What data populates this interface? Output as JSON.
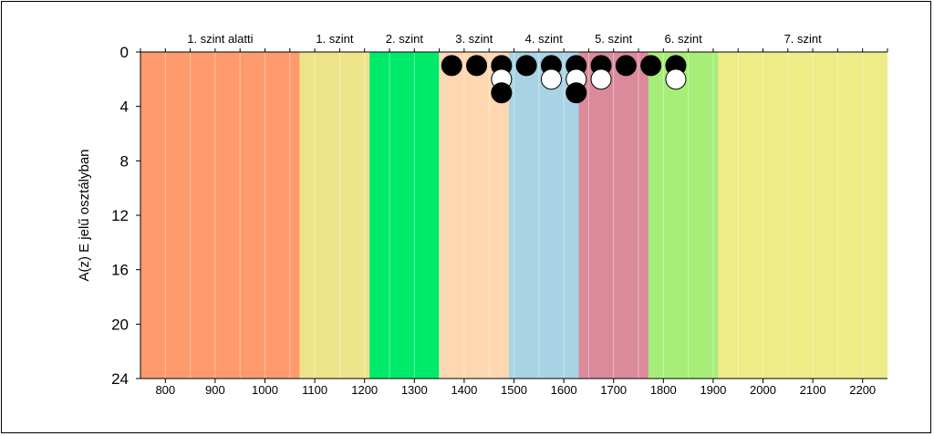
{
  "chart_data": {
    "type": "scatter",
    "title": "",
    "xlabel": "",
    "ylabel": "A(z) E jelű osztályban",
    "xlim": [
      750,
      2250
    ],
    "ylim": [
      0,
      24
    ],
    "y_inverted": true,
    "xticks": [
      800,
      900,
      1000,
      1100,
      1200,
      1300,
      1400,
      1500,
      1600,
      1700,
      1800,
      1900,
      2000,
      2100,
      2200
    ],
    "yticks": [
      0,
      4,
      8,
      12,
      16,
      20,
      24
    ],
    "minor_x_step": 50,
    "levels": [
      {
        "label": "1. szint alatti",
        "from": 750,
        "to": 1070,
        "color": "#FF9A6C"
      },
      {
        "label": "1. szint",
        "from": 1070,
        "to": 1210,
        "color": "#EDE48A"
      },
      {
        "label": "2. szint",
        "from": 1210,
        "to": 1350,
        "color": "#00EA6A"
      },
      {
        "label": "3. szint",
        "from": 1350,
        "to": 1490,
        "color": "#FDD7B0"
      },
      {
        "label": "4. szint",
        "from": 1490,
        "to": 1630,
        "color": "#A8D3E4"
      },
      {
        "label": "5. szint",
        "from": 1630,
        "to": 1770,
        "color": "#DB8A9C"
      },
      {
        "label": "6. szint",
        "from": 1770,
        "to": 1910,
        "color": "#A6EE78"
      },
      {
        "label": "7. szint",
        "from": 1910,
        "to": 2250,
        "color": "#EDEC86"
      }
    ],
    "points": [
      {
        "x": 1375,
        "y": 1,
        "fill": "black"
      },
      {
        "x": 1425,
        "y": 1,
        "fill": "black"
      },
      {
        "x": 1475,
        "y": 1,
        "fill": "black"
      },
      {
        "x": 1475,
        "y": 2,
        "fill": "white"
      },
      {
        "x": 1475,
        "y": 3,
        "fill": "black"
      },
      {
        "x": 1525,
        "y": 1,
        "fill": "black"
      },
      {
        "x": 1575,
        "y": 1,
        "fill": "black"
      },
      {
        "x": 1575,
        "y": 2,
        "fill": "white"
      },
      {
        "x": 1625,
        "y": 1,
        "fill": "black"
      },
      {
        "x": 1625,
        "y": 2,
        "fill": "white"
      },
      {
        "x": 1625,
        "y": 3,
        "fill": "black"
      },
      {
        "x": 1675,
        "y": 1,
        "fill": "black"
      },
      {
        "x": 1675,
        "y": 2,
        "fill": "white"
      },
      {
        "x": 1725,
        "y": 1,
        "fill": "black"
      },
      {
        "x": 1775,
        "y": 1,
        "fill": "black"
      },
      {
        "x": 1825,
        "y": 1,
        "fill": "black"
      },
      {
        "x": 1825,
        "y": 2,
        "fill": "white"
      }
    ]
  }
}
